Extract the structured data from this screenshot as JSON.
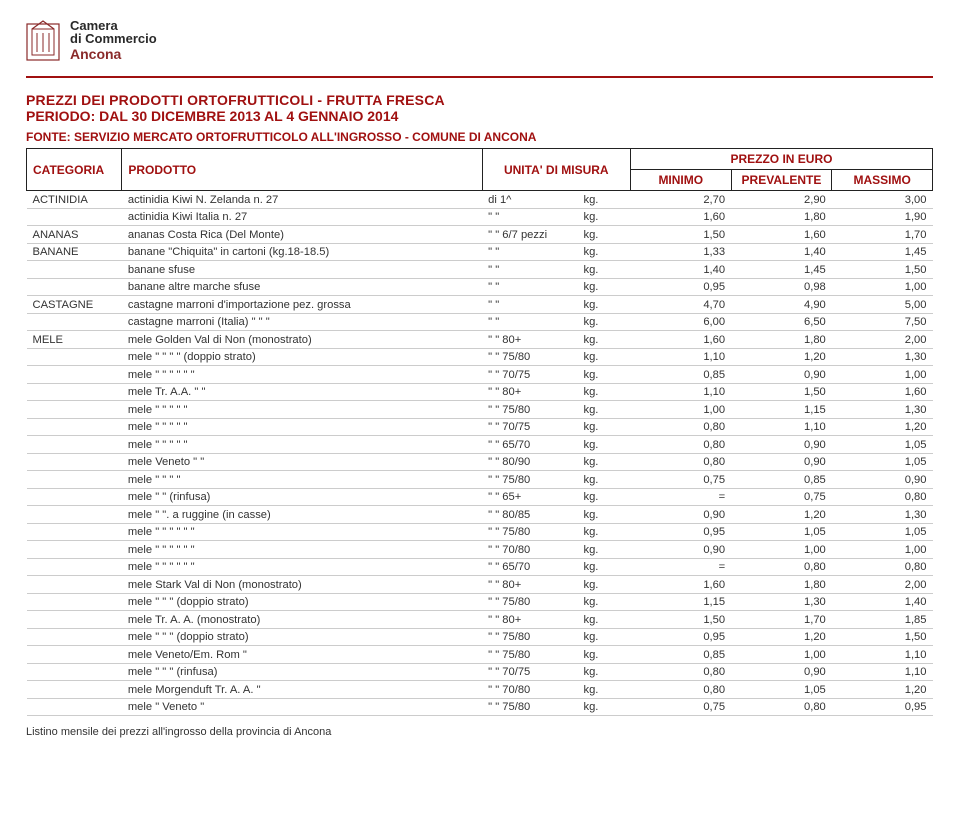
{
  "logo": {
    "text1": "Camera",
    "text2": "di Commercio",
    "text3": "Ancona"
  },
  "title": "PREZZI DEI PRODOTTI ORTOFRUTTICOLI - FRUTTA FRESCA",
  "subtitle": "PERIODO: DAL 30 DICEMBRE 2013 AL 4 GENNAIO 2014",
  "source": "FONTE: SERVIZIO MERCATO ORTOFRUTTICOLO ALL'INGROSSO - COMUNE DI ANCONA",
  "headers": {
    "categoria": "CATEGORIA",
    "prodotto": "PRODOTTO",
    "unita": "UNITA' DI MISURA",
    "prezzo": "PREZZO IN EURO",
    "minimo": "MINIMO",
    "prevalente": "PREVALENTE",
    "massimo": "MASSIMO"
  },
  "rows": [
    {
      "cat": "ACTINIDIA",
      "prod": "actinidia Kiwi   N.  Zelanda   n. 27",
      "um1": "di  1^",
      "um2": "kg.",
      "min": "2,70",
      "prev": "2,90",
      "max": "3,00"
    },
    {
      "cat": "",
      "prod": "actinidia Kiwi    Italia        n. 27",
      "um1": "\"   \"",
      "um2": "kg.",
      "min": "1,60",
      "prev": "1,80",
      "max": "1,90"
    },
    {
      "cat": "ANANAS",
      "prod": "ananas Costa Rica  (Del Monte)",
      "um1": "\"   \"   6/7 pezzi",
      "um2": "kg.",
      "min": "1,50",
      "prev": "1,60",
      "max": "1,70"
    },
    {
      "cat": "BANANE",
      "prod": "banane \"Chiquita\"  in  cartoni (kg.18-18.5)",
      "um1": "\"   \"",
      "um2": "kg.",
      "min": "1,33",
      "prev": "1,40",
      "max": "1,45"
    },
    {
      "cat": "",
      "prod": "banane           sfuse",
      "um1": "\"   \"",
      "um2": "kg.",
      "min": "1,40",
      "prev": "1,45",
      "max": "1,50"
    },
    {
      "cat": "",
      "prod": "banane altre marche sfuse",
      "um1": "\"   \"",
      "um2": "kg.",
      "min": "0,95",
      "prev": "0,98",
      "max": "1,00"
    },
    {
      "cat": "CASTAGNE",
      "prod": "castagne marroni d'importazione pez. grossa",
      "um1": "\"   \"",
      "um2": "kg.",
      "min": "4,70",
      "prev": "4,90",
      "max": "5,00"
    },
    {
      "cat": "",
      "prod": "castagne marroni (Italia)   \"    \"    \"",
      "um1": "\"   \"",
      "um2": "kg.",
      "min": "6,00",
      "prev": "6,50",
      "max": "7,50"
    },
    {
      "cat": "MELE",
      "prod": "mele Golden Val di Non     (monostrato)",
      "um1": "\"   \"   80+",
      "um2": "kg.",
      "min": "1,60",
      "prev": "1,80",
      "max": "2,00"
    },
    {
      "cat": "",
      "prod": "mele    \"    \"    \"    \"    (doppio strato)",
      "um1": "\"   \"   75/80",
      "um2": "kg.",
      "min": "1,10",
      "prev": "1,20",
      "max": "1,30"
    },
    {
      "cat": "",
      "prod": "mele    \"    \"    \"    \"       \"    \"",
      "um1": "\"   \"   70/75",
      "um2": "kg.",
      "min": "0,85",
      "prev": "0,90",
      "max": "1,00"
    },
    {
      "cat": "",
      "prod": "mele     Tr.   A.A.    \"       \"",
      "um1": "\"   \"   80+",
      "um2": "kg.",
      "min": "1,10",
      "prev": "1,50",
      "max": "1,60"
    },
    {
      "cat": "",
      "prod": "mele    \"    \"    \"    \"       \"",
      "um1": "\"   \"   75/80",
      "um2": "kg.",
      "min": "1,00",
      "prev": "1,15",
      "max": "1,30"
    },
    {
      "cat": "",
      "prod": "mele    \"    \"    \"    \"       \"",
      "um1": "\"   \"   70/75",
      "um2": "kg.",
      "min": "0,80",
      "prev": "1,10",
      "max": "1,20"
    },
    {
      "cat": "",
      "prod": "mele    \"    \"    \"    \"       \"",
      "um1": "\"   \"   65/70",
      "um2": "kg.",
      "min": "0,80",
      "prev": "0,90",
      "max": "1,05"
    },
    {
      "cat": "",
      "prod": "mele      Veneto     \"       \"",
      "um1": "\"   \"   80/90",
      "um2": "kg.",
      "min": "0,80",
      "prev": "0,90",
      "max": "1,05"
    },
    {
      "cat": "",
      "prod": "mele    \"    \"    \"       \"",
      "um1": "\"   \"   75/80",
      "um2": "kg.",
      "min": "0,75",
      "prev": "0,85",
      "max": "0,90"
    },
    {
      "cat": "",
      "prod": "mele    \"    \"    (rinfusa)",
      "um1": "\"   \"   65+",
      "um2": "kg.",
      "min": "=",
      "prev": "0,75",
      "max": "0,80"
    },
    {
      "cat": "",
      "prod": "mele    \"    \". a ruggine (in casse)",
      "um1": "\"   \"   80/85",
      "um2": "kg.",
      "min": "0,90",
      "prev": "1,20",
      "max": "1,30"
    },
    {
      "cat": "",
      "prod": "mele    \"    \"    \"    \"    \"       \"",
      "um1": "\"   \"   75/80",
      "um2": "kg.",
      "min": "0,95",
      "prev": "1,05",
      "max": "1,05"
    },
    {
      "cat": "",
      "prod": "mele    \"    \"    \"    \"    \"       \"",
      "um1": "\"   \"   70/80",
      "um2": "kg.",
      "min": "0,90",
      "prev": "1,00",
      "max": "1,00"
    },
    {
      "cat": "",
      "prod": "mele    \"    \"    \"    \"    \"       \"",
      "um1": "\"   \"   65/70",
      "um2": "kg.",
      "min": "=",
      "prev": "0,80",
      "max": "0,80"
    },
    {
      "cat": "",
      "prod": "mele Stark  Val di Non     (monostrato)",
      "um1": "\"   \"   80+",
      "um2": "kg.",
      "min": "1,60",
      "prev": "1,80",
      "max": "2,00"
    },
    {
      "cat": "",
      "prod": "mele    \"    \"    \"    (doppio strato)",
      "um1": "\"   \"   75/80",
      "um2": "kg.",
      "min": "1,15",
      "prev": "1,30",
      "max": "1,40"
    },
    {
      "cat": "",
      "prod": "mele     Tr.  A. A.     (monostrato)",
      "um1": "\"   \"   80+",
      "um2": "kg.",
      "min": "1,50",
      "prev": "1,70",
      "max": "1,85"
    },
    {
      "cat": "",
      "prod": "mele    \"    \"    \"    (doppio strato)",
      "um1": "\"   \"   75/80",
      "um2": "kg.",
      "min": "0,95",
      "prev": "1,20",
      "max": "1,50"
    },
    {
      "cat": "",
      "prod": "mele     Veneto/Em. Rom  \"",
      "um1": "\"   \"   75/80",
      "um2": "kg.",
      "min": "0,85",
      "prev": "1,00",
      "max": "1,10"
    },
    {
      "cat": "",
      "prod": "mele    \"    \"    \"    (rinfusa)",
      "um1": "\"   \"   70/75",
      "um2": "kg.",
      "min": "0,80",
      "prev": "0,90",
      "max": "1,10"
    },
    {
      "cat": "",
      "prod": "mele Morgenduft  Tr. A. A.   \"",
      "um1": "\"   \"   70/80",
      "um2": "kg.",
      "min": "0,80",
      "prev": "1,05",
      "max": "1,20"
    },
    {
      "cat": "",
      "prod": "mele    \"        Veneto      \"",
      "um1": "\"   \"   75/80",
      "um2": "kg.",
      "min": "0,75",
      "prev": "0,80",
      "max": "0,95"
    }
  ],
  "footer": "Listino mensile dei prezzi all'ingrosso della provincia di Ancona",
  "colors": {
    "accent": "#a01010",
    "border": "#222",
    "row_line": "#cccccc",
    "bg": "#ffffff",
    "text": "#333333"
  }
}
